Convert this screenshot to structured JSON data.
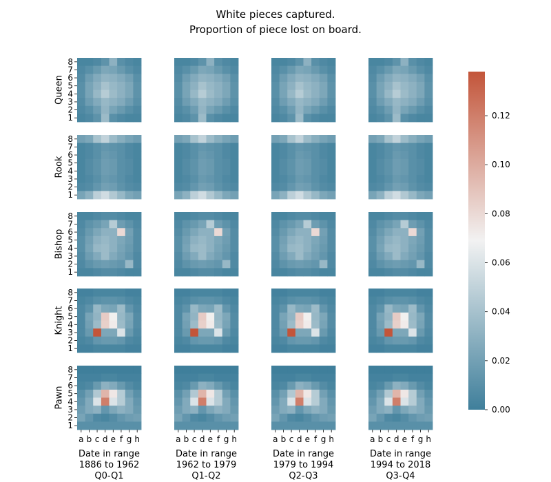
{
  "chart_data": {
    "type": "heatmap",
    "title": [
      "White pieces captured.",
      "Proportion of piece lost on board."
    ],
    "row_labels": [
      "Queen",
      "Rook",
      "Bishop",
      "Knight",
      "Pawn"
    ],
    "file_ticks": [
      "a",
      "b",
      "c",
      "d",
      "e",
      "f",
      "g",
      "h"
    ],
    "rank_ticks": [
      "8",
      "7",
      "6",
      "5",
      "4",
      "3",
      "2",
      "1"
    ],
    "columns": [
      {
        "label": [
          "Date in range",
          "1886 to 1962",
          "Q0-Q1"
        ]
      },
      {
        "label": [
          "Date in range",
          "1962 to 1979",
          "Q1-Q2"
        ]
      },
      {
        "label": [
          "Date in range",
          "1979 to 1994",
          "Q2-Q3"
        ]
      },
      {
        "label": [
          "Date in range",
          "1994 to 2018",
          "Q3-Q4"
        ]
      }
    ],
    "colorbar": {
      "min": 0.0,
      "max": 0.138,
      "ticks": [
        "0.00",
        "0.02",
        "0.04",
        "0.06",
        "0.08",
        "0.10",
        "0.12"
      ],
      "tick_values": [
        0.0,
        0.02,
        0.04,
        0.06,
        0.08,
        0.1,
        0.12
      ],
      "colors": [
        "#3f7f9b",
        "#f2f2f2",
        "#c3553a"
      ]
    },
    "grids": {
      "Queen": [
        [
          0.004,
          0.004,
          0.006,
          0.012,
          0.03,
          0.01,
          0.006,
          0.004
        ],
        [
          0.006,
          0.01,
          0.016,
          0.024,
          0.022,
          0.016,
          0.01,
          0.006
        ],
        [
          0.008,
          0.018,
          0.026,
          0.032,
          0.03,
          0.026,
          0.02,
          0.01
        ],
        [
          0.01,
          0.022,
          0.03,
          0.04,
          0.034,
          0.03,
          0.024,
          0.012
        ],
        [
          0.01,
          0.022,
          0.034,
          0.046,
          0.036,
          0.03,
          0.024,
          0.012
        ],
        [
          0.008,
          0.018,
          0.026,
          0.034,
          0.03,
          0.026,
          0.018,
          0.01
        ],
        [
          0.006,
          0.01,
          0.018,
          0.032,
          0.022,
          0.016,
          0.01,
          0.006
        ],
        [
          0.004,
          0.006,
          0.012,
          0.036,
          0.01,
          0.006,
          0.004,
          0.004
        ]
      ],
      "Rook": [
        [
          0.02,
          0.024,
          0.04,
          0.05,
          0.036,
          0.028,
          0.022,
          0.018
        ],
        [
          0.004,
          0.006,
          0.01,
          0.014,
          0.012,
          0.01,
          0.006,
          0.004
        ],
        [
          0.004,
          0.006,
          0.01,
          0.016,
          0.014,
          0.01,
          0.006,
          0.004
        ],
        [
          0.004,
          0.008,
          0.012,
          0.018,
          0.016,
          0.01,
          0.008,
          0.004
        ],
        [
          0.004,
          0.008,
          0.012,
          0.018,
          0.016,
          0.01,
          0.008,
          0.004
        ],
        [
          0.004,
          0.006,
          0.01,
          0.016,
          0.014,
          0.01,
          0.006,
          0.004
        ],
        [
          0.006,
          0.008,
          0.014,
          0.02,
          0.018,
          0.012,
          0.008,
          0.006
        ],
        [
          0.022,
          0.03,
          0.048,
          0.056,
          0.044,
          0.034,
          0.024,
          0.02
        ]
      ],
      "Bishop": [
        [
          0.004,
          0.004,
          0.006,
          0.008,
          0.008,
          0.006,
          0.004,
          0.004
        ],
        [
          0.006,
          0.012,
          0.016,
          0.022,
          0.046,
          0.018,
          0.012,
          0.006
        ],
        [
          0.008,
          0.016,
          0.024,
          0.03,
          0.03,
          0.08,
          0.02,
          0.008
        ],
        [
          0.01,
          0.02,
          0.03,
          0.034,
          0.03,
          0.024,
          0.018,
          0.008
        ],
        [
          0.01,
          0.022,
          0.034,
          0.036,
          0.03,
          0.022,
          0.016,
          0.008
        ],
        [
          0.008,
          0.018,
          0.026,
          0.036,
          0.026,
          0.02,
          0.014,
          0.006
        ],
        [
          0.006,
          0.012,
          0.016,
          0.018,
          0.016,
          0.014,
          0.034,
          0.006
        ],
        [
          0.004,
          0.004,
          0.006,
          0.008,
          0.008,
          0.006,
          0.004,
          0.004
        ]
      ],
      "Knight": [
        [
          0.002,
          0.002,
          0.004,
          0.004,
          0.004,
          0.004,
          0.002,
          0.002
        ],
        [
          0.004,
          0.006,
          0.01,
          0.012,
          0.012,
          0.01,
          0.006,
          0.004
        ],
        [
          0.006,
          0.012,
          0.034,
          0.024,
          0.022,
          0.036,
          0.014,
          0.006
        ],
        [
          0.006,
          0.022,
          0.032,
          0.086,
          0.07,
          0.034,
          0.024,
          0.008
        ],
        [
          0.006,
          0.02,
          0.036,
          0.084,
          0.072,
          0.036,
          0.022,
          0.008
        ],
        [
          0.006,
          0.016,
          0.138,
          0.024,
          0.024,
          0.06,
          0.016,
          0.006
        ],
        [
          0.004,
          0.006,
          0.014,
          0.016,
          0.016,
          0.014,
          0.006,
          0.004
        ],
        [
          0.002,
          0.002,
          0.004,
          0.004,
          0.004,
          0.004,
          0.002,
          0.002
        ]
      ],
      "Pawn": [
        [
          0.0,
          0.0,
          0.0,
          0.0,
          0.0,
          0.0,
          0.0,
          0.0
        ],
        [
          0.002,
          0.002,
          0.002,
          0.004,
          0.004,
          0.002,
          0.002,
          0.002
        ],
        [
          0.004,
          0.006,
          0.016,
          0.03,
          0.026,
          0.016,
          0.008,
          0.004
        ],
        [
          0.01,
          0.02,
          0.044,
          0.096,
          0.074,
          0.046,
          0.02,
          0.01
        ],
        [
          0.014,
          0.026,
          0.06,
          0.12,
          0.06,
          0.046,
          0.026,
          0.014
        ],
        [
          0.018,
          0.026,
          0.03,
          0.014,
          0.024,
          0.03,
          0.026,
          0.016
        ],
        [
          0.022,
          0.014,
          0.006,
          0.004,
          0.008,
          0.014,
          0.018,
          0.02
        ],
        [
          0.01,
          0.01,
          0.01,
          0.01,
          0.01,
          0.01,
          0.01,
          0.01
        ]
      ]
    }
  }
}
